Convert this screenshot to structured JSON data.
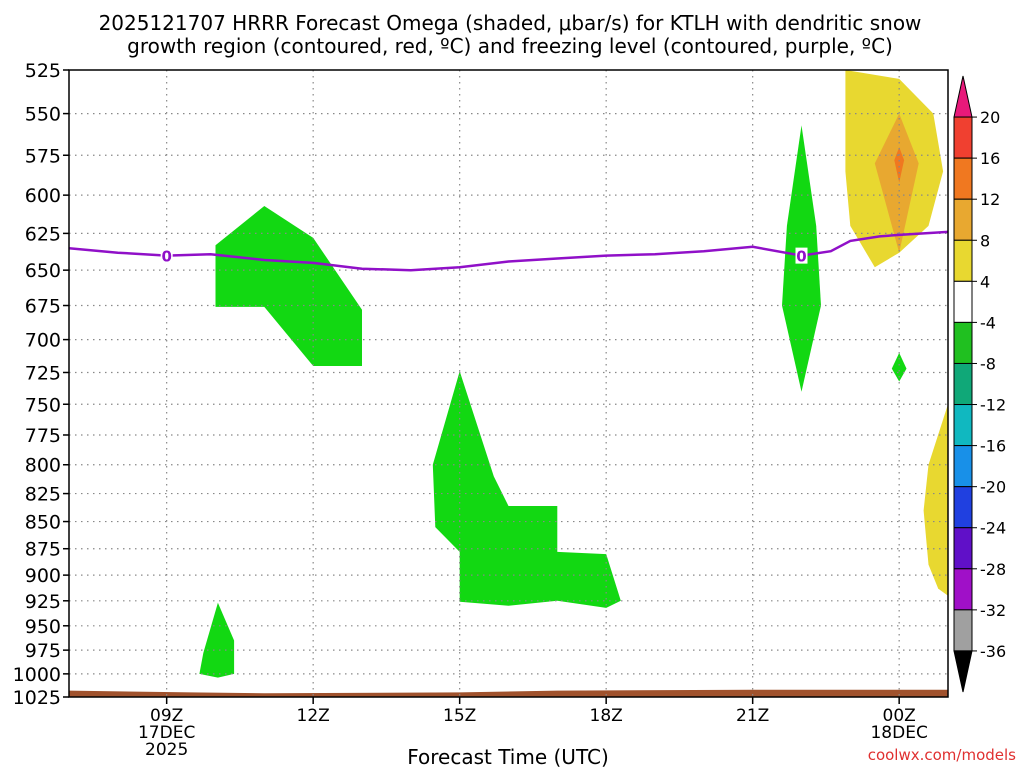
{
  "chart_data": {
    "type": "heatmap",
    "title_line1": "2025121707 HRRR Forecast Omega (shaded, μbar/s) for KTLH with dendritic snow",
    "title_line2": "growth region (contoured, red, ºC) and freezing level (contoured, purple, ºC)",
    "xlabel": "Forecast Time (UTC)",
    "ylabel": "",
    "credit": "coolwx.com/models",
    "x_range_hours_from_09z": [
      -2,
      16
    ],
    "y_range_mb": [
      525,
      1025
    ],
    "y_ticks": [
      525,
      550,
      575,
      600,
      625,
      650,
      675,
      700,
      725,
      750,
      775,
      800,
      825,
      850,
      875,
      900,
      925,
      950,
      975,
      1000,
      1025
    ],
    "x_ticks": [
      {
        "h": 0,
        "label": "09Z",
        "sub1": "17DEC",
        "sub2": "2025"
      },
      {
        "h": 3,
        "label": "12Z",
        "sub1": "",
        "sub2": ""
      },
      {
        "h": 6,
        "label": "15Z",
        "sub1": "",
        "sub2": ""
      },
      {
        "h": 9,
        "label": "18Z",
        "sub1": "",
        "sub2": ""
      },
      {
        "h": 12,
        "label": "21Z",
        "sub1": "",
        "sub2": ""
      },
      {
        "h": 15,
        "label": "00Z",
        "sub1": "18DEC",
        "sub2": ""
      }
    ],
    "grid": true,
    "colorbar": {
      "levels": [
        20,
        16,
        12,
        8,
        4,
        -4,
        -8,
        -12,
        -16,
        -20,
        -24,
        -28,
        -32,
        -36
      ],
      "colors": [
        "#e8197a",
        "#f04030",
        "#f07820",
        "#e8a830",
        "#e8d830",
        "#ffffff",
        "#20c020",
        "#10a878",
        "#10b8c0",
        "#1890e8",
        "#2040e0",
        "#6010c8",
        "#a010c8",
        "#a0a0a0",
        "#000000"
      ]
    },
    "freezing_level": {
      "label": "0",
      "color": "#9010c8",
      "points": [
        [
          -2,
          635
        ],
        [
          -1,
          638
        ],
        [
          0,
          640
        ],
        [
          0.9,
          639
        ],
        [
          2,
          643
        ],
        [
          3,
          645
        ],
        [
          4,
          649
        ],
        [
          5,
          650
        ],
        [
          6,
          648
        ],
        [
          7,
          644
        ],
        [
          8,
          642
        ],
        [
          9,
          640
        ],
        [
          10,
          639
        ],
        [
          11,
          637
        ],
        [
          12,
          634
        ],
        [
          13,
          640
        ],
        [
          13.6,
          637
        ],
        [
          14,
          630
        ],
        [
          14.6,
          627
        ],
        [
          15,
          626
        ],
        [
          16,
          624
        ]
      ]
    },
    "regions": [
      {
        "name": "green-area-1",
        "value": -6,
        "color": "#12d812",
        "points": [
          [
            1,
            633
          ],
          [
            2,
            607
          ],
          [
            3,
            628
          ],
          [
            4,
            678
          ],
          [
            4,
            720
          ],
          [
            3,
            720
          ],
          [
            2,
            676
          ],
          [
            1,
            676
          ]
        ]
      },
      {
        "name": "green-area-2",
        "value": -6,
        "color": "#12d812",
        "points": [
          [
            0.75,
            978
          ],
          [
            1.05,
            927
          ],
          [
            1.38,
            965
          ],
          [
            1.38,
            1000
          ],
          [
            1.05,
            1004
          ],
          [
            0.67,
            1000
          ]
        ]
      },
      {
        "name": "green-area-3",
        "value": -6,
        "color": "#12d812",
        "points": [
          [
            6,
            724
          ],
          [
            6.7,
            810
          ],
          [
            7,
            836
          ],
          [
            8,
            836
          ],
          [
            8,
            878
          ],
          [
            9,
            880
          ],
          [
            9.3,
            925
          ],
          [
            9,
            932
          ],
          [
            8,
            925
          ],
          [
            7,
            930
          ],
          [
            6,
            926
          ],
          [
            6,
            878
          ],
          [
            5.5,
            855
          ],
          [
            5.45,
            800
          ]
        ]
      },
      {
        "name": "green-area-4",
        "value": -6,
        "color": "#12d812",
        "points": [
          [
            13,
            557
          ],
          [
            13.3,
            620
          ],
          [
            13.4,
            675
          ],
          [
            13,
            740
          ],
          [
            12.6,
            675
          ],
          [
            12.7,
            620
          ]
        ]
      },
      {
        "name": "green-area-5",
        "value": -6,
        "color": "#12d812",
        "points": [
          [
            15,
            710
          ],
          [
            15.15,
            722
          ],
          [
            15,
            732
          ],
          [
            14.85,
            722
          ]
        ]
      },
      {
        "name": "yellow-area-1",
        "value": 6,
        "color": "#e8d830",
        "points": [
          [
            13.9,
            525
          ],
          [
            15,
            530
          ],
          [
            15.7,
            550
          ],
          [
            15.9,
            585
          ],
          [
            15.6,
            620
          ],
          [
            15,
            638
          ],
          [
            14.5,
            648
          ],
          [
            14,
            620
          ],
          [
            13.9,
            585
          ]
        ]
      },
      {
        "name": "orange-area-1",
        "value": 10,
        "color": "#e8a830",
        "points": [
          [
            14.5,
            580
          ],
          [
            15,
            550
          ],
          [
            15.4,
            580
          ],
          [
            15,
            638
          ]
        ]
      },
      {
        "name": "red-orange-area-1",
        "value": 14,
        "color": "#f07820",
        "points": [
          [
            14.9,
            578
          ],
          [
            15,
            570
          ],
          [
            15.1,
            578
          ],
          [
            15,
            592
          ]
        ]
      },
      {
        "name": "yellow-area-2",
        "value": 6,
        "color": "#e8d830",
        "points": [
          [
            16,
            750
          ],
          [
            16,
            920
          ],
          [
            15.8,
            913
          ],
          [
            15.6,
            890
          ],
          [
            15.5,
            840
          ],
          [
            15.6,
            800
          ]
        ]
      },
      {
        "name": "terrain",
        "value": 0,
        "color": "#a0522d",
        "points": [
          [
            -2,
            1018
          ],
          [
            0.5,
            1020
          ],
          [
            2,
            1021
          ],
          [
            6,
            1020
          ],
          [
            8,
            1018
          ],
          [
            12,
            1017
          ],
          [
            16,
            1017
          ],
          [
            16,
            1025
          ],
          [
            -2,
            1025
          ]
        ]
      }
    ]
  }
}
